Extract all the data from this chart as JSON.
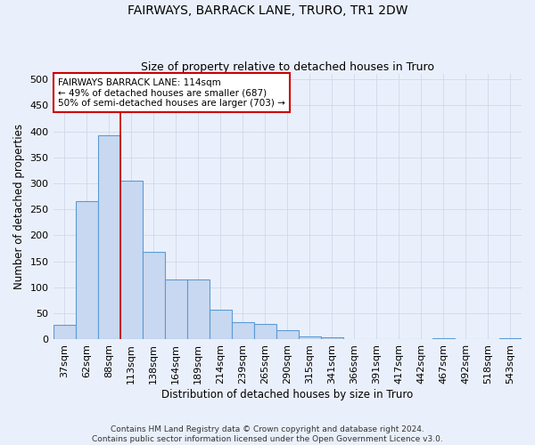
{
  "title": "FAIRWAYS, BARRACK LANE, TRURO, TR1 2DW",
  "subtitle": "Size of property relative to detached houses in Truro",
  "xlabel": "Distribution of detached houses by size in Truro",
  "ylabel": "Number of detached properties",
  "footnote": "Contains HM Land Registry data © Crown copyright and database right 2024.\nContains public sector information licensed under the Open Government Licence v3.0.",
  "bar_color": "#c8d8f0",
  "bar_edge_color": "#5b9bd5",
  "bar_edge_width": 0.8,
  "categories": [
    "37sqm",
    "62sqm",
    "88sqm",
    "113sqm",
    "138sqm",
    "164sqm",
    "189sqm",
    "214sqm",
    "239sqm",
    "265sqm",
    "290sqm",
    "315sqm",
    "341sqm",
    "366sqm",
    "391sqm",
    "417sqm",
    "442sqm",
    "467sqm",
    "492sqm",
    "518sqm",
    "543sqm"
  ],
  "values": [
    28,
    265,
    393,
    305,
    168,
    115,
    115,
    58,
    33,
    30,
    18,
    6,
    4,
    0,
    0,
    0,
    0,
    3,
    0,
    0,
    3
  ],
  "ylim": [
    0,
    510
  ],
  "yticks": [
    0,
    50,
    100,
    150,
    200,
    250,
    300,
    350,
    400,
    450,
    500
  ],
  "property_line_x": 2.5,
  "property_line_color": "#cc0000",
  "annotation_text": "FAIRWAYS BARRACK LANE: 114sqm\n← 49% of detached houses are smaller (687)\n50% of semi-detached houses are larger (703) →",
  "annotation_box_color": "#ffffff",
  "annotation_box_edgecolor": "#cc0000",
  "background_color": "#eaf0fb",
  "grid_color": "#d0d8e8",
  "title_fontsize": 10,
  "subtitle_fontsize": 9,
  "axis_fontsize": 8.5,
  "tick_fontsize": 8,
  "footnote_fontsize": 6.5
}
